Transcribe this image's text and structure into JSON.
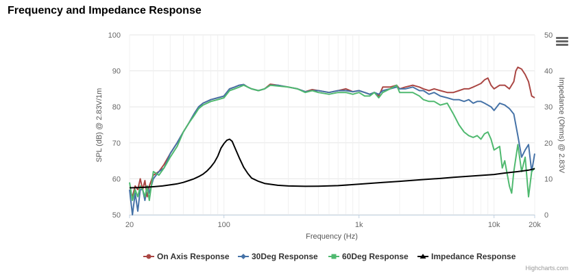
{
  "chart_data": {
    "type": "line",
    "title": "Frequency and Impedance Response",
    "xlabel": "Frequency (Hz)",
    "ylabel": "SPL (dB) @ 2.83V/1m",
    "y2label": "Impedance (Ohms) @ 2.83V",
    "x_scale": "log",
    "xlim": [
      20,
      20000
    ],
    "ylim": [
      50,
      100
    ],
    "y2lim": [
      0,
      50
    ],
    "x_ticks": [
      20,
      100,
      1000,
      10000,
      20000
    ],
    "x_tick_labels": [
      "20",
      "100",
      "1k",
      "10k",
      "20k"
    ],
    "y_ticks": [
      50,
      60,
      70,
      80,
      90,
      100
    ],
    "y_tick_labels": [
      "50",
      "60",
      "70",
      "80",
      "90",
      "100"
    ],
    "y2_ticks": [
      0,
      10,
      20,
      30,
      40,
      50
    ],
    "y2_tick_labels": [
      "0",
      "10",
      "20",
      "30",
      "40",
      "50"
    ],
    "grid": true,
    "legend_position": "bottom-center",
    "series": [
      {
        "name": "On Axis Response",
        "color": "#aa4643",
        "marker": "circle",
        "axis": "left",
        "points": [
          [
            20,
            57
          ],
          [
            21,
            55
          ],
          [
            22,
            58
          ],
          [
            23,
            57
          ],
          [
            24,
            60
          ],
          [
            25,
            57
          ],
          [
            26,
            59.5
          ],
          [
            27,
            55
          ],
          [
            28,
            58
          ],
          [
            30,
            61
          ],
          [
            33,
            62
          ],
          [
            36,
            64
          ],
          [
            40,
            67
          ],
          [
            45,
            70
          ],
          [
            50,
            73
          ],
          [
            55,
            75.5
          ],
          [
            60,
            78
          ],
          [
            65,
            80
          ],
          [
            70,
            81
          ],
          [
            80,
            82
          ],
          [
            90,
            82.5
          ],
          [
            100,
            83
          ],
          [
            110,
            85
          ],
          [
            120,
            85.5
          ],
          [
            130,
            86
          ],
          [
            140,
            86.2
          ],
          [
            150,
            85.5
          ],
          [
            160,
            85
          ],
          [
            180,
            84.5
          ],
          [
            200,
            85
          ],
          [
            220,
            86.3
          ],
          [
            250,
            86
          ],
          [
            300,
            85.5
          ],
          [
            350,
            85
          ],
          [
            400,
            84.2
          ],
          [
            450,
            84.8
          ],
          [
            500,
            84.5
          ],
          [
            600,
            84
          ],
          [
            700,
            84.5
          ],
          [
            800,
            85
          ],
          [
            900,
            84.2
          ],
          [
            1000,
            84.5
          ],
          [
            1100,
            84
          ],
          [
            1200,
            83.5
          ],
          [
            1300,
            84
          ],
          [
            1400,
            83
          ],
          [
            1500,
            85.5
          ],
          [
            1700,
            85.5
          ],
          [
            1900,
            86
          ],
          [
            2000,
            85
          ],
          [
            2200,
            85.5
          ],
          [
            2500,
            86
          ],
          [
            2800,
            85.5
          ],
          [
            3000,
            85
          ],
          [
            3300,
            84.5
          ],
          [
            3600,
            85
          ],
          [
            4000,
            84.5
          ],
          [
            4500,
            84
          ],
          [
            5000,
            84
          ],
          [
            5500,
            84.5
          ],
          [
            6000,
            85
          ],
          [
            6500,
            85
          ],
          [
            7000,
            85.5
          ],
          [
            7500,
            86
          ],
          [
            8000,
            86.5
          ],
          [
            8500,
            87.5
          ],
          [
            9000,
            88
          ],
          [
            9500,
            86
          ],
          [
            10000,
            85
          ],
          [
            11000,
            86
          ],
          [
            12000,
            86
          ],
          [
            13000,
            85
          ],
          [
            14000,
            87
          ],
          [
            14500,
            90
          ],
          [
            15000,
            91
          ],
          [
            16000,
            90.5
          ],
          [
            17000,
            89
          ],
          [
            18000,
            87
          ],
          [
            19000,
            83
          ],
          [
            20000,
            82.5
          ]
        ]
      },
      {
        "name": "30Deg Response",
        "color": "#4572a7",
        "marker": "diamond",
        "axis": "left",
        "points": [
          [
            20,
            57
          ],
          [
            21,
            50
          ],
          [
            22,
            56
          ],
          [
            23,
            51
          ],
          [
            24,
            57
          ],
          [
            25,
            57
          ],
          [
            26,
            54
          ],
          [
            27,
            58
          ],
          [
            28,
            56
          ],
          [
            30,
            60
          ],
          [
            33,
            62
          ],
          [
            36,
            63
          ],
          [
            40,
            67
          ],
          [
            45,
            70
          ],
          [
            50,
            73
          ],
          [
            55,
            75.5
          ],
          [
            60,
            78
          ],
          [
            65,
            80
          ],
          [
            70,
            81
          ],
          [
            80,
            82
          ],
          [
            90,
            82.5
          ],
          [
            100,
            83
          ],
          [
            110,
            85
          ],
          [
            120,
            85.5
          ],
          [
            130,
            86
          ],
          [
            140,
            86.2
          ],
          [
            150,
            85.5
          ],
          [
            160,
            85
          ],
          [
            180,
            84.5
          ],
          [
            200,
            85
          ],
          [
            220,
            86
          ],
          [
            250,
            86
          ],
          [
            300,
            85.5
          ],
          [
            350,
            85
          ],
          [
            400,
            84.2
          ],
          [
            450,
            84.5
          ],
          [
            500,
            84.5
          ],
          [
            600,
            84
          ],
          [
            700,
            84.5
          ],
          [
            800,
            84.5
          ],
          [
            900,
            84.2
          ],
          [
            1000,
            84.5
          ],
          [
            1100,
            84
          ],
          [
            1200,
            83.5
          ],
          [
            1300,
            84
          ],
          [
            1400,
            83.5
          ],
          [
            1500,
            84.5
          ],
          [
            1700,
            85
          ],
          [
            1900,
            85.5
          ],
          [
            2000,
            85
          ],
          [
            2200,
            85
          ],
          [
            2500,
            85.5
          ],
          [
            2800,
            84.5
          ],
          [
            3000,
            84.5
          ],
          [
            3300,
            83.5
          ],
          [
            3600,
            84
          ],
          [
            4000,
            83
          ],
          [
            4500,
            82.5
          ],
          [
            5000,
            82
          ],
          [
            5500,
            82
          ],
          [
            6000,
            81.5
          ],
          [
            6500,
            82
          ],
          [
            7000,
            81
          ],
          [
            7500,
            81.5
          ],
          [
            8000,
            81.5
          ],
          [
            8500,
            81
          ],
          [
            9000,
            80.5
          ],
          [
            9500,
            80
          ],
          [
            10000,
            79
          ],
          [
            11000,
            81
          ],
          [
            12000,
            80.5
          ],
          [
            13000,
            79.5
          ],
          [
            14000,
            78
          ],
          [
            15000,
            72
          ],
          [
            16000,
            66
          ],
          [
            17000,
            68
          ],
          [
            18000,
            69.5
          ],
          [
            19000,
            62
          ],
          [
            20000,
            67
          ]
        ]
      },
      {
        "name": "60Deg Response",
        "color": "#4fb96f",
        "marker": "square",
        "axis": "left",
        "points": [
          [
            20,
            59
          ],
          [
            21,
            54
          ],
          [
            22,
            57
          ],
          [
            23,
            55
          ],
          [
            24,
            58
          ],
          [
            25,
            57
          ],
          [
            26,
            55
          ],
          [
            27,
            58
          ],
          [
            28,
            54
          ],
          [
            30,
            62
          ],
          [
            33,
            61
          ],
          [
            36,
            63
          ],
          [
            40,
            66
          ],
          [
            45,
            69
          ],
          [
            50,
            73
          ],
          [
            55,
            75.5
          ],
          [
            60,
            77.5
          ],
          [
            65,
            79.5
          ],
          [
            70,
            80.5
          ],
          [
            80,
            81.5
          ],
          [
            90,
            82
          ],
          [
            100,
            82.5
          ],
          [
            110,
            84.5
          ],
          [
            120,
            85
          ],
          [
            130,
            85.5
          ],
          [
            140,
            86
          ],
          [
            150,
            85.5
          ],
          [
            160,
            85
          ],
          [
            180,
            84.5
          ],
          [
            200,
            85
          ],
          [
            220,
            86
          ],
          [
            250,
            85.8
          ],
          [
            300,
            85.5
          ],
          [
            350,
            85
          ],
          [
            400,
            84
          ],
          [
            450,
            84.5
          ],
          [
            500,
            84
          ],
          [
            600,
            83.5
          ],
          [
            700,
            84
          ],
          [
            800,
            84
          ],
          [
            900,
            83.5
          ],
          [
            1000,
            84
          ],
          [
            1100,
            83
          ],
          [
            1200,
            83
          ],
          [
            1300,
            84
          ],
          [
            1400,
            82.5
          ],
          [
            1500,
            84
          ],
          [
            1700,
            85
          ],
          [
            1900,
            86
          ],
          [
            2000,
            84
          ],
          [
            2200,
            84
          ],
          [
            2500,
            84
          ],
          [
            2800,
            83
          ],
          [
            3000,
            82
          ],
          [
            3300,
            81.5
          ],
          [
            3600,
            81.5
          ],
          [
            4000,
            80.5
          ],
          [
            4500,
            81
          ],
          [
            5000,
            78
          ],
          [
            5500,
            75
          ],
          [
            6000,
            73
          ],
          [
            6500,
            72
          ],
          [
            7000,
            71.5
          ],
          [
            7500,
            72
          ],
          [
            8000,
            71
          ],
          [
            8500,
            72.5
          ],
          [
            9000,
            73
          ],
          [
            9500,
            71
          ],
          [
            10000,
            68
          ],
          [
            11000,
            69
          ],
          [
            11500,
            63
          ],
          [
            12000,
            65
          ],
          [
            13000,
            58
          ],
          [
            13500,
            56
          ],
          [
            14000,
            62
          ],
          [
            15000,
            69.5
          ],
          [
            16000,
            62
          ],
          [
            17000,
            66
          ],
          [
            18000,
            55
          ],
          [
            19000,
            62
          ],
          [
            20000,
            63
          ]
        ]
      },
      {
        "name": "Impedance Response",
        "color": "#000000",
        "marker": "triangle",
        "axis": "right",
        "points": [
          [
            20,
            7.5
          ],
          [
            25,
            7.6
          ],
          [
            30,
            7.8
          ],
          [
            35,
            8
          ],
          [
            40,
            8.3
          ],
          [
            45,
            8.6
          ],
          [
            50,
            9
          ],
          [
            55,
            9.5
          ],
          [
            60,
            10
          ],
          [
            65,
            10.6
          ],
          [
            70,
            11.3
          ],
          [
            75,
            12.2
          ],
          [
            80,
            13.3
          ],
          [
            85,
            14.6
          ],
          [
            90,
            16.3
          ],
          [
            95,
            18.5
          ],
          [
            100,
            19.8
          ],
          [
            105,
            20.7
          ],
          [
            110,
            21
          ],
          [
            115,
            20.4
          ],
          [
            120,
            18.8
          ],
          [
            130,
            15.8
          ],
          [
            140,
            13.2
          ],
          [
            150,
            11.5
          ],
          [
            160,
            10.2
          ],
          [
            180,
            9.3
          ],
          [
            200,
            8.7
          ],
          [
            250,
            8.2
          ],
          [
            300,
            8
          ],
          [
            400,
            7.9
          ],
          [
            500,
            7.95
          ],
          [
            700,
            8.1
          ],
          [
            1000,
            8.5
          ],
          [
            1500,
            9
          ],
          [
            2000,
            9.3
          ],
          [
            3000,
            9.8
          ],
          [
            4000,
            10.1
          ],
          [
            5000,
            10.4
          ],
          [
            7000,
            10.8
          ],
          [
            10000,
            11.2
          ],
          [
            12000,
            11.6
          ],
          [
            15000,
            12
          ],
          [
            18000,
            12.4
          ],
          [
            20000,
            12.8
          ]
        ]
      }
    ]
  },
  "credit": "Highcharts.com"
}
